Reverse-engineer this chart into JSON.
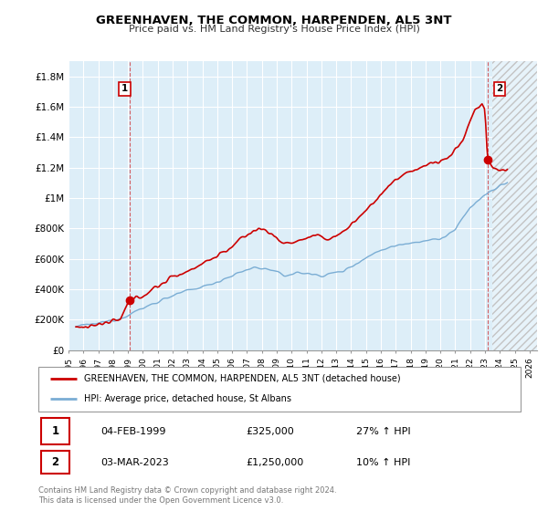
{
  "title": "GREENHAVEN, THE COMMON, HARPENDEN, AL5 3NT",
  "subtitle": "Price paid vs. HM Land Registry's House Price Index (HPI)",
  "ylabel_ticks": [
    "£0",
    "£200K",
    "£400K",
    "£600K",
    "£800K",
    "£1M",
    "£1.2M",
    "£1.4M",
    "£1.6M",
    "£1.8M"
  ],
  "ylabel_values": [
    0,
    200000,
    400000,
    600000,
    800000,
    1000000,
    1200000,
    1400000,
    1600000,
    1800000
  ],
  "ylim": [
    0,
    1900000
  ],
  "xlim_start": 1995.0,
  "xlim_end": 2026.5,
  "xtick_years": [
    1995,
    1996,
    1997,
    1998,
    1999,
    2000,
    2001,
    2002,
    2003,
    2004,
    2005,
    2006,
    2007,
    2008,
    2009,
    2010,
    2011,
    2012,
    2013,
    2014,
    2015,
    2016,
    2017,
    2018,
    2019,
    2020,
    2021,
    2022,
    2023,
    2024,
    2025,
    2026
  ],
  "background_color": "#ddeef8",
  "grid_color": "#ffffff",
  "red_line_color": "#cc0000",
  "blue_line_color": "#7aadd4",
  "transaction1_date": 1999.09,
  "transaction1_value": 325000,
  "transaction2_date": 2023.17,
  "transaction2_value": 1250000,
  "legend_line1": "GREENHAVEN, THE COMMON, HARPENDEN, AL5 3NT (detached house)",
  "legend_line2": "HPI: Average price, detached house, St Albans",
  "annot1_date": "04-FEB-1999",
  "annot1_price": "£325,000",
  "annot1_hpi": "27% ↑ HPI",
  "annot2_date": "03-MAR-2023",
  "annot2_price": "£1,250,000",
  "annot2_hpi": "10% ↑ HPI",
  "footer": "Contains HM Land Registry data © Crown copyright and database right 2024.\nThis data is licensed under the Open Government Licence v3.0.",
  "hatched_region_start": 2023.5,
  "vline1_x": 1999.09,
  "vline2_x": 2023.17
}
